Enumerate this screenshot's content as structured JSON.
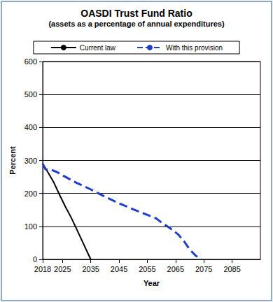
{
  "chart_data": {
    "type": "line",
    "title": "OASDI Trust Fund Ratio",
    "subtitle": "(assets as a percentage of annual expenditures)",
    "x_label": "Year",
    "y_label": "Percent",
    "xlim": [
      2018,
      2095
    ],
    "xticks": [
      2018,
      2025,
      2035,
      2045,
      2055,
      2065,
      2075,
      2085
    ],
    "ylim": [
      0,
      600
    ],
    "yticks": [
      0,
      100,
      200,
      300,
      400,
      500,
      600
    ],
    "grid": true,
    "legend": "top",
    "series": [
      {
        "name": "Current law",
        "color": "#000000",
        "line_style": "solid",
        "x": [
          2018,
          2020,
          2022,
          2024,
          2026,
          2028,
          2030,
          2032,
          2034,
          2035
        ],
        "values": [
          290,
          262,
          232,
          195,
          160,
          128,
          92,
          55,
          18,
          0
        ]
      },
      {
        "name": "With this provision",
        "color": "#1f3fc8",
        "line_style": "dashed",
        "x": [
          2018,
          2019,
          2021,
          2023,
          2025,
          2030,
          2035,
          2040,
          2045,
          2050,
          2055,
          2058,
          2060,
          2063,
          2066,
          2068,
          2070,
          2072,
          2074
        ],
        "values": [
          290,
          273,
          272,
          265,
          255,
          232,
          212,
          190,
          170,
          152,
          135,
          125,
          112,
          95,
          75,
          55,
          30,
          12,
          0
        ]
      }
    ]
  }
}
